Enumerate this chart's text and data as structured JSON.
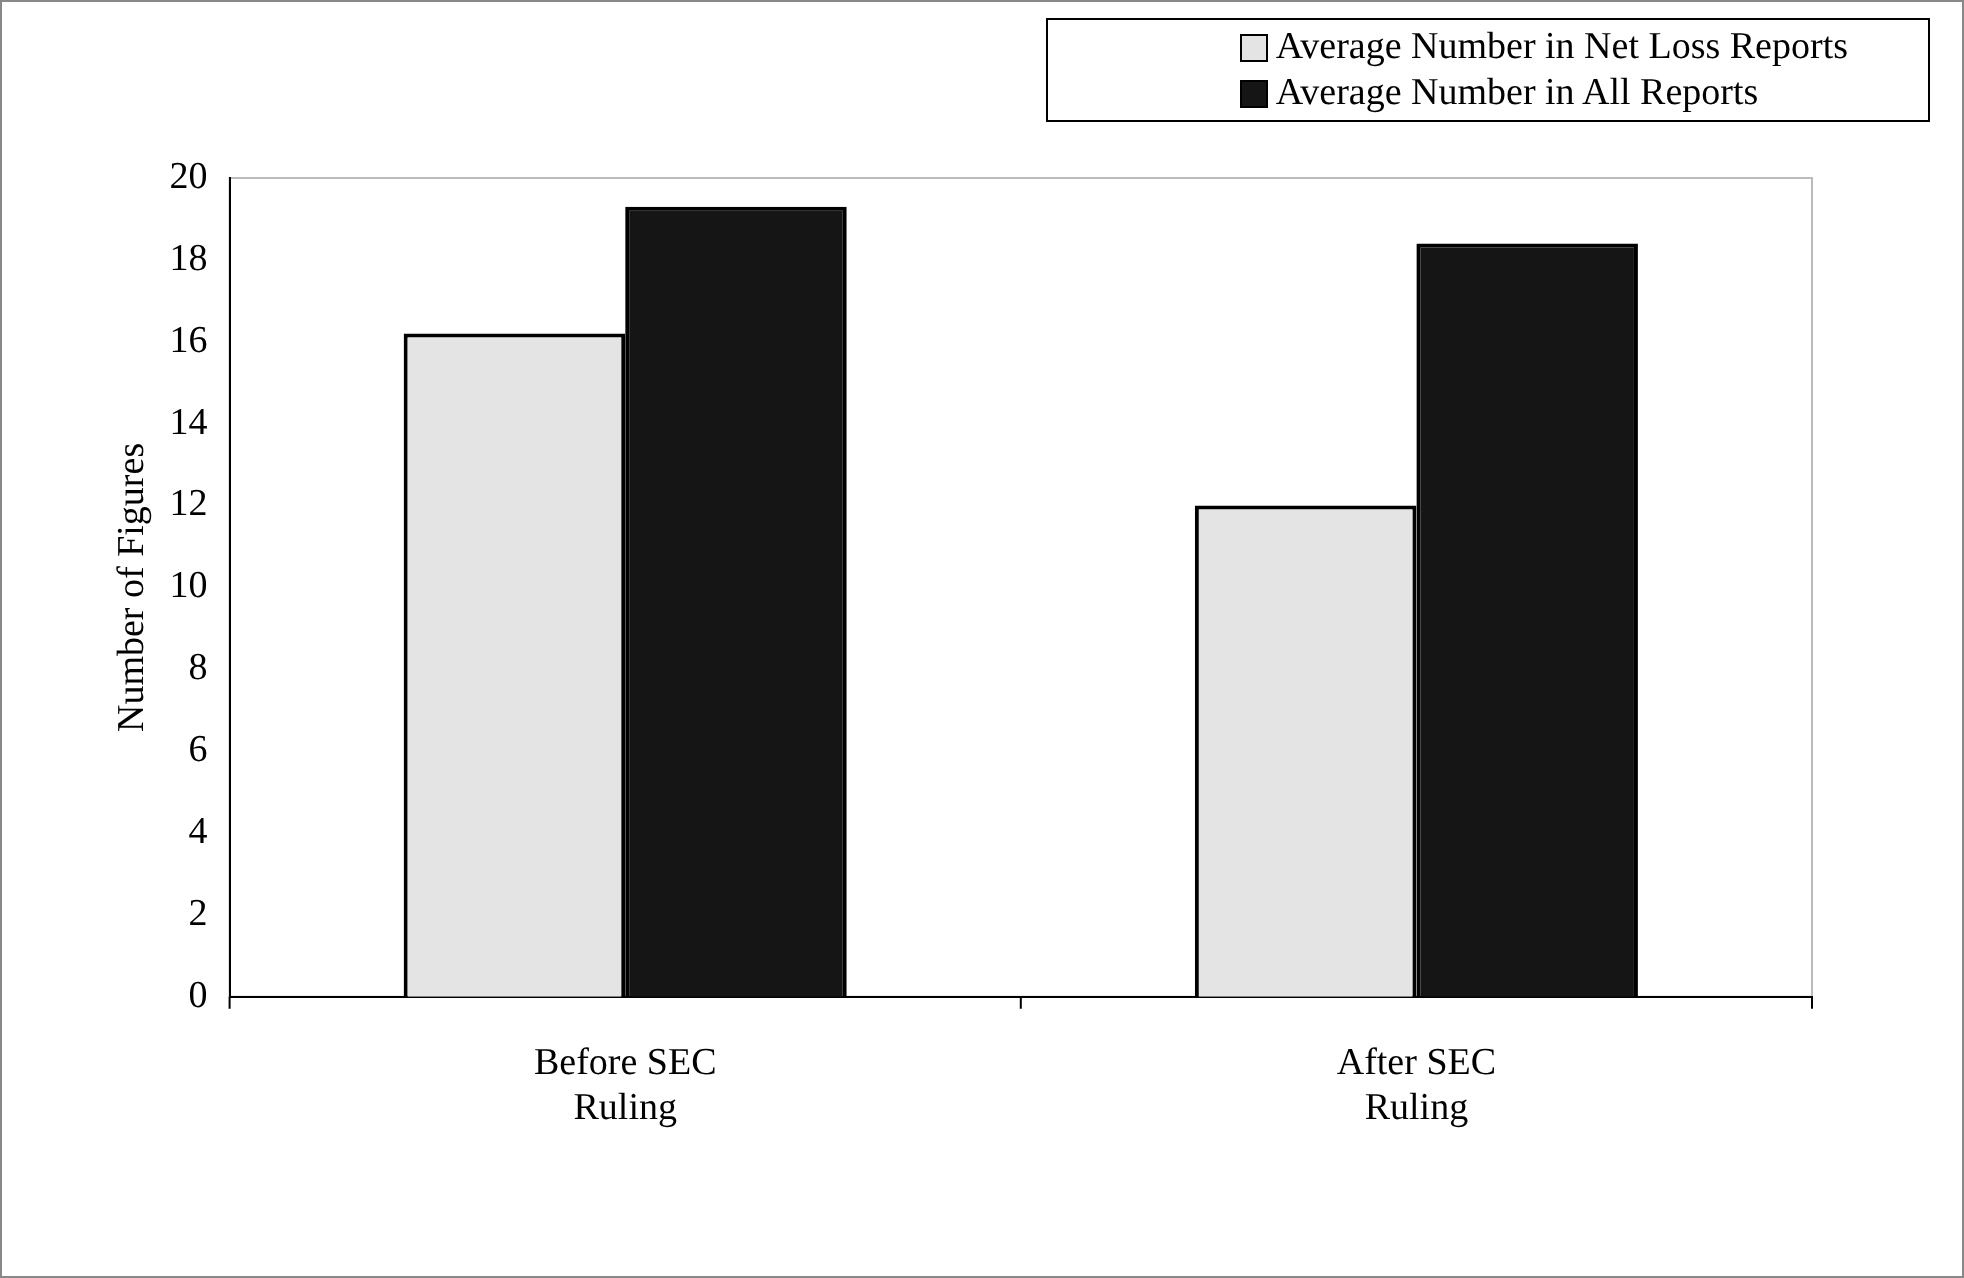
{
  "chart_data": {
    "type": "bar",
    "ylabel": "Number of Figures",
    "categories": [
      "Before SEC Ruling",
      "After SEC Ruling"
    ],
    "series": [
      {
        "name": "Average Number in Net Loss Reports",
        "color": "#e4e4e4",
        "values": [
          16.2,
          12.0
        ]
      },
      {
        "name": "Average Number in All Reports",
        "color": "#151515",
        "values": [
          19.3,
          18.4
        ]
      }
    ],
    "ylim": [
      0,
      20
    ],
    "yticks": [
      0,
      2,
      4,
      6,
      8,
      10,
      12,
      14,
      16,
      18,
      20
    ],
    "grid": false,
    "legend": "top right"
  }
}
